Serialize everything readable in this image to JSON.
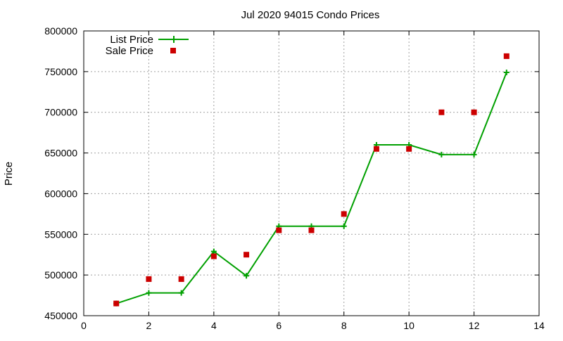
{
  "chart_data": {
    "type": "line",
    "title": "Jul 2020 94015 Condo Prices",
    "xlabel": "",
    "ylabel": "Price",
    "xlim": [
      0,
      14
    ],
    "ylim": [
      450000,
      800000
    ],
    "x_ticks": [
      0,
      2,
      4,
      6,
      8,
      10,
      12,
      14
    ],
    "y_ticks": [
      450000,
      500000,
      550000,
      600000,
      650000,
      700000,
      750000,
      800000
    ],
    "grid": true,
    "legend_position": "top-left",
    "series": [
      {
        "name": "List Price",
        "style": "line with plus markers",
        "color": "#00a000",
        "x": [
          1,
          2,
          3,
          4,
          5,
          6,
          7,
          8,
          9,
          10,
          11,
          12,
          13
        ],
        "values": [
          465000,
          478000,
          478000,
          529000,
          499000,
          560000,
          560000,
          560000,
          660000,
          660000,
          648000,
          648000,
          749000
        ]
      },
      {
        "name": "Sale Price",
        "style": "square markers",
        "color": "#cc0000",
        "x": [
          1,
          2,
          3,
          4,
          5,
          6,
          7,
          8,
          9,
          10,
          11,
          12,
          13
        ],
        "values": [
          465000,
          495000,
          495000,
          523000,
          525000,
          555000,
          555000,
          575000,
          655000,
          655000,
          700000,
          700000,
          769000
        ]
      }
    ]
  }
}
